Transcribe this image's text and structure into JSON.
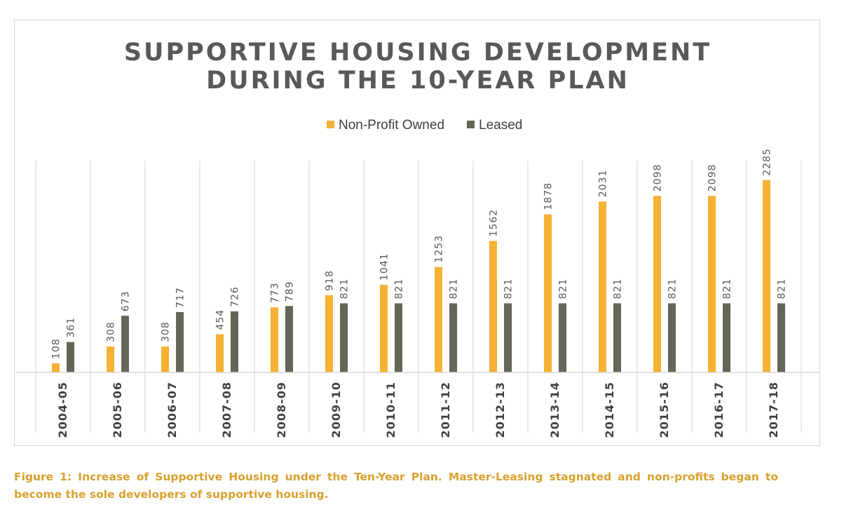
{
  "chart_data": {
    "type": "bar",
    "title_lines": [
      "SUPPORTIVE HOUSING DEVELOPMENT",
      "DURING THE 10-YEAR PLAN"
    ],
    "categories": [
      "2004-05",
      "2005-06",
      "2006-07",
      "2007-08",
      "2008-09",
      "2009-10",
      "2010-11",
      "2011-12",
      "2012-13",
      "2013-14",
      "2014-15",
      "2015-16",
      "2016-17",
      "2017-18"
    ],
    "series": [
      {
        "name": "Non-Profit Owned",
        "color": "#f5b133",
        "values": [
          108,
          308,
          308,
          454,
          773,
          918,
          1041,
          1253,
          1562,
          1878,
          2031,
          2098,
          2098,
          2285
        ]
      },
      {
        "name": "Leased",
        "color": "#656558",
        "values": [
          361,
          673,
          717,
          726,
          789,
          821,
          821,
          821,
          821,
          821,
          821,
          821,
          821,
          821
        ]
      }
    ],
    "ylim": [
      0,
      2300
    ],
    "legend_position": "top-center",
    "grid": "vertical category separators"
  },
  "caption": "Figure 1: Increase of Supportive Housing under the Ten-Year Plan. Master-Leasing stagnated and non-profits began to become the sole developers of supportive housing."
}
